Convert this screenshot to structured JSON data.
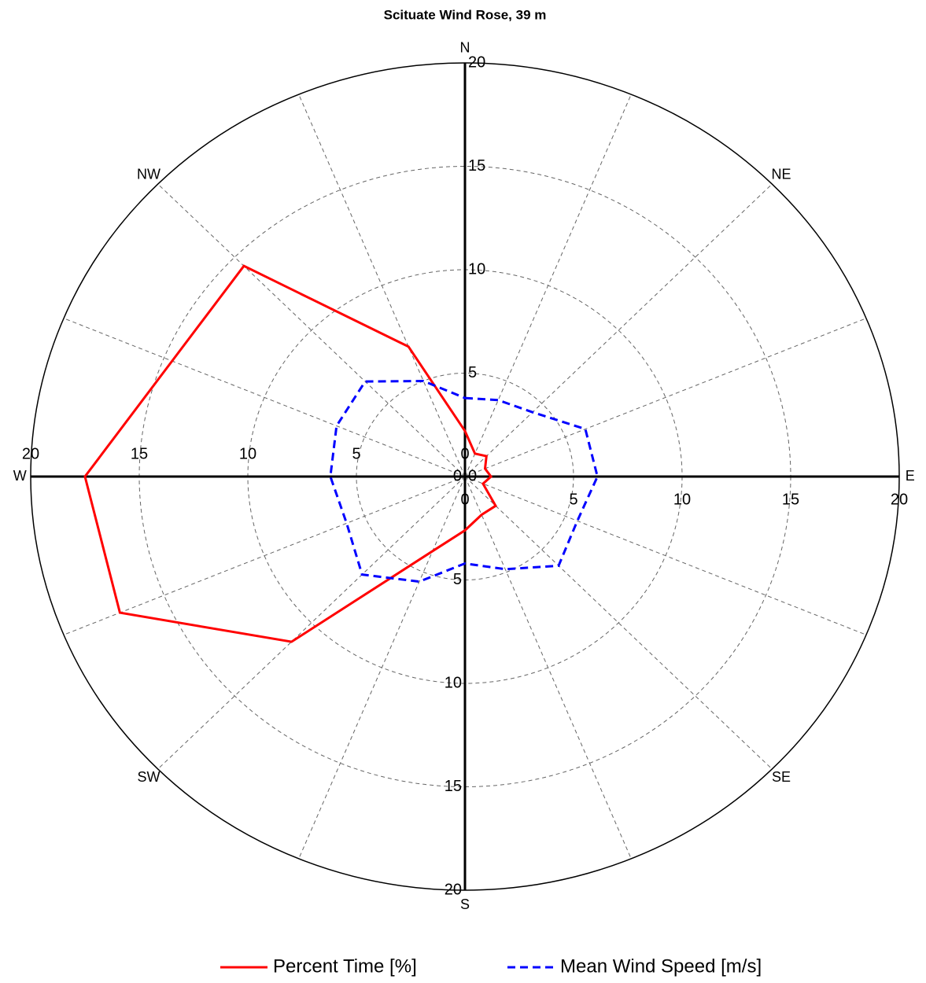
{
  "chart_data": {
    "type": "polar",
    "title": "Scituate Wind Rose, 39 m",
    "title_color": "#0000ff",
    "categories": [
      "N",
      null,
      "NE",
      null,
      "E",
      null,
      "SE",
      null,
      "S",
      null,
      "SW",
      null,
      "W",
      null,
      "NW",
      null
    ],
    "rlim": [
      0,
      20
    ],
    "rticks": [
      0,
      5,
      10,
      15,
      20
    ],
    "grid": true,
    "legend": "bottom",
    "series": [
      {
        "name": "Percent Time [%]",
        "color": "#ff0000",
        "dash": false,
        "values": [
          2.2,
          1.2,
          1.4,
          1.0,
          1.2,
          0.9,
          2.0,
          2.0,
          2.6,
          3.9,
          11.3,
          17.2,
          17.5,
          14.6,
          14.4,
          6.8
        ]
      },
      {
        "name": "Mean Wind Speed [m/s]",
        "color": "#0000ff",
        "dash": true,
        "values": [
          3.8,
          4.0,
          4.4,
          6.0,
          6.1,
          5.6,
          6.1,
          4.85,
          4.2,
          5.5,
          6.7,
          5.9,
          6.2,
          6.4,
          6.5,
          5.0
        ]
      }
    ]
  }
}
